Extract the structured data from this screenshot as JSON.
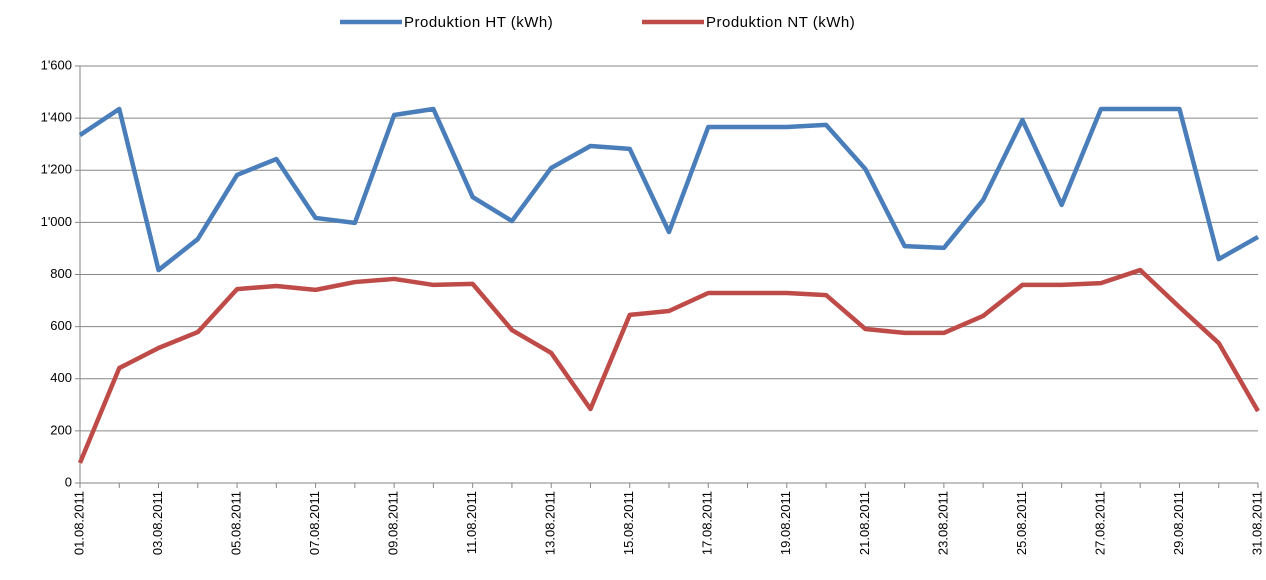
{
  "chart_data": {
    "type": "line",
    "categories": [
      "01.08.2011",
      null,
      "03.08.2011",
      null,
      "05.08.2011",
      null,
      "07.08.2011",
      null,
      "09.08.2011",
      null,
      "11.08.2011",
      null,
      "13.08.2011",
      null,
      "15.08.2011",
      null,
      "17.08.2011",
      null,
      "19.08.2011",
      null,
      "21.08.2011",
      null,
      "23.08.2011",
      null,
      "25.08.2011",
      null,
      "27.08.2011",
      null,
      "29.08.2011",
      null,
      "31.08.2011"
    ],
    "series": [
      {
        "name": "Produktion HT (kWh)",
        "color": "#4a7ebb",
        "values": [
          1335,
          1435,
          817,
          936,
          1182,
          1243,
          1017,
          998,
          1412,
          1435,
          1097,
          1005,
          1209,
          1293,
          1282,
          963,
          1366,
          1366,
          1366,
          1374,
          1205,
          909,
          902,
          1086,
          1393,
          1067,
          1435,
          1435,
          1435,
          859,
          944
        ]
      },
      {
        "name": "Produktion NT (kWh)",
        "color": "#be4b48",
        "values": [
          77,
          441,
          518,
          579,
          744,
          756,
          741,
          771,
          783,
          760,
          764,
          587,
          499,
          284,
          645,
          660,
          729,
          729,
          729,
          721,
          591,
          576,
          576,
          641,
          760,
          760,
          767,
          817,
          675,
          537,
          276
        ]
      }
    ],
    "ylim": [
      0,
      1600
    ],
    "yticks": [
      0,
      200,
      400,
      600,
      800,
      {
        "value": 1000,
        "label": "1'000"
      },
      {
        "value": 1200,
        "label": "1'200"
      },
      {
        "value": 1400,
        "label": "1'400"
      },
      {
        "value": 1600,
        "label": "1'600"
      }
    ],
    "grid": true,
    "legend": "top"
  }
}
